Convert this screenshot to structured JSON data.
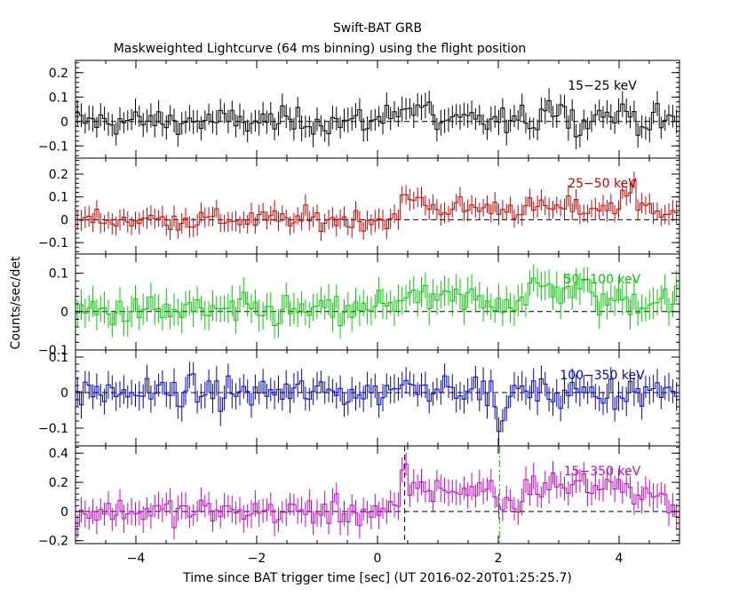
{
  "chart_data": {
    "type": "line",
    "title": "Swift-BAT GRB",
    "subtitle": "Maskweighted Lightcurve (64 ms binning) using the flight position",
    "xlabel": "Time since BAT trigger time [sec] (UT 2016-02-20T01:25:25.7)",
    "ylabel": "Counts/sec/det",
    "xlim": [
      -5,
      5
    ],
    "x_ticks": [
      -4,
      -2,
      0,
      2,
      4
    ],
    "x_tick_labels": [
      "−4",
      "−2",
      "0",
      "2",
      "4"
    ],
    "bin_width_s": 0.064,
    "markers": [
      {
        "x": 0.45,
        "color": "#000000",
        "style": "dash"
      },
      {
        "x": 2.02,
        "color": "#00cc00",
        "style": "dashdot"
      }
    ],
    "panels": [
      {
        "name": "15−25 keV",
        "color": "#000000",
        "ylim": [
          -0.15,
          0.25
        ],
        "y_ticks": [
          -0.1,
          0,
          0.1,
          0.2
        ],
        "y_tick_labels": [
          "−0.1",
          "0",
          "0.1",
          "0.2"
        ],
        "noise": 0.045,
        "features": [
          {
            "t0": 0.1,
            "t1": 0.9,
            "amp": 0.05
          },
          {
            "t0": 2.7,
            "t1": 3.1,
            "amp": 0.06
          },
          {
            "t0": 3.5,
            "t1": 4.3,
            "amp": 0.03
          }
        ]
      },
      {
        "name": "25−50 keV",
        "color": "#cc0000",
        "ylim": [
          -0.15,
          0.27
        ],
        "y_ticks": [
          -0.1,
          0,
          0.1,
          0.2
        ],
        "y_tick_labels": [
          "−0.1",
          "0",
          "0.1",
          "0.2"
        ],
        "noise": 0.04,
        "features": [
          {
            "t0": 0.4,
            "t1": 0.8,
            "amp": 0.09
          },
          {
            "t0": 0.8,
            "t1": 5.0,
            "amp": 0.05
          },
          {
            "t0": 4.0,
            "t1": 4.3,
            "amp": 0.08
          }
        ]
      },
      {
        "name": "50−100 keV",
        "color": "#00cc00",
        "ylim": [
          -0.1,
          0.15
        ],
        "y_ticks": [
          -0.1,
          0,
          0.1
        ],
        "y_tick_labels": [
          "−0.1",
          "0",
          "0.1"
        ],
        "noise": 0.035,
        "features": [
          {
            "t0": 0.0,
            "t1": 5.0,
            "amp": 0.03
          },
          {
            "t0": 2.5,
            "t1": 3.5,
            "amp": 0.03
          }
        ]
      },
      {
        "name": "100−350 keV",
        "color": "#0000cc",
        "ylim": [
          -0.15,
          0.12
        ],
        "y_ticks": [
          -0.1,
          0,
          0.1
        ],
        "y_tick_labels": [
          "−0.1",
          "0",
          "0.1"
        ],
        "noise": 0.035,
        "features": [
          {
            "t0": 0.2,
            "t1": 1.5,
            "amp": 0.02
          },
          {
            "t0": 2.0,
            "t1": 2.1,
            "amp": -0.12
          }
        ]
      },
      {
        "name": "15−350 keV",
        "color": "#cc00cc",
        "ylim": [
          -0.22,
          0.45
        ],
        "y_ticks": [
          -0.2,
          0,
          0.2,
          0.4
        ],
        "y_tick_labels": [
          "−0.2",
          "0",
          "0.2",
          "0.4"
        ],
        "noise": 0.08,
        "features": [
          {
            "t0": 0.4,
            "t1": 0.5,
            "amp": 0.25
          },
          {
            "t0": 0.5,
            "t1": 2.0,
            "amp": 0.15
          },
          {
            "t0": 2.0,
            "t1": 2.4,
            "amp": 0.05
          },
          {
            "t0": 2.4,
            "t1": 4.2,
            "amp": 0.18
          },
          {
            "t0": 4.2,
            "t1": 5.0,
            "amp": 0.08
          }
        ]
      }
    ]
  }
}
